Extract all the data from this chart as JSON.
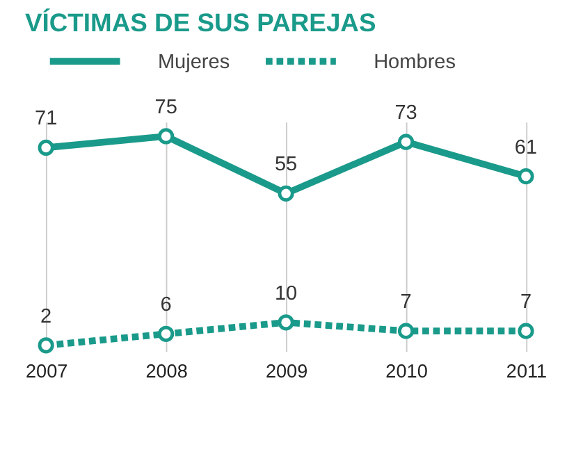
{
  "chart_data": {
    "type": "line",
    "title": "VÍCTIMAS DE SUS PAREJAS",
    "categories": [
      "2007",
      "2008",
      "2009",
      "2010",
      "2011"
    ],
    "series": [
      {
        "name": "Mujeres",
        "color": "#1a9a8a",
        "values": [
          71,
          75,
          55,
          73,
          61
        ],
        "line_style": "solid"
      },
      {
        "name": "Hombres",
        "color": "#1a9a8a",
        "values": [
          2,
          6,
          10,
          7,
          7
        ],
        "line_style": "dotted"
      }
    ],
    "ylim": [
      0,
      80
    ],
    "tick_labels": "x",
    "grid": "x",
    "legend": "top",
    "marker": "circle",
    "data_labels": true
  }
}
